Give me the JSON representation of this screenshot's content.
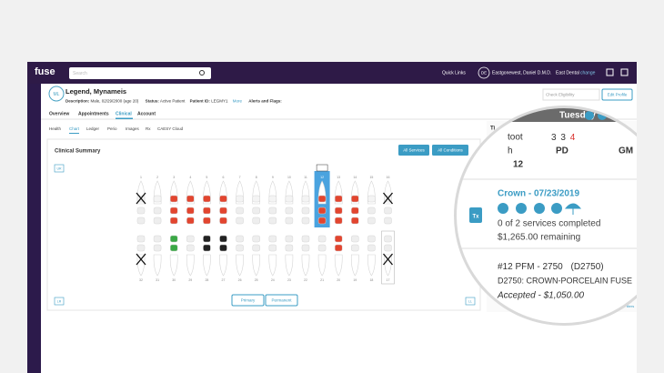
{
  "nav": {
    "logo": "fuse",
    "search_placeholder": "Search",
    "quick_links": "Quick Links",
    "user_initials": "DE",
    "user_name": "Eastgonewest, Daniel D.M.D.",
    "office": "East Dental",
    "office_action": "change"
  },
  "patient": {
    "initials": "ML",
    "name": "Legend, Mynameis",
    "description_label": "Description:",
    "description": "Male, 02/29/2000 (age 20)",
    "status_label": "Status:",
    "status": "Active Patient",
    "id_label": "Patient ID:",
    "id": "LEGMY1",
    "more": "More",
    "alerts": "Alerts and Flags:",
    "eligibility": "Check Eligibility",
    "edit": "Edit Profile"
  },
  "tabs": [
    "Overview",
    "Appointments",
    "Clinical",
    "Account"
  ],
  "subtabs": [
    "Health",
    "Chart",
    "Ledger",
    "Perio",
    "Images",
    "Rx",
    "CAESY Cloud"
  ],
  "chart": {
    "title": "Clinical Summary",
    "buttons": [
      "All Services",
      "All Conditions"
    ],
    "quadrant_ur": "UR",
    "quadrant_lr": "LR",
    "quadrant_ll": "LL",
    "dentition": [
      "Primary",
      "Permanent"
    ],
    "upper_teeth": [
      1,
      2,
      3,
      4,
      5,
      6,
      7,
      8,
      9,
      10,
      11,
      12,
      13,
      14,
      15,
      16
    ],
    "lower_teeth": [
      32,
      31,
      30,
      29,
      28,
      27,
      26,
      25,
      24,
      23,
      22,
      21,
      20,
      19,
      18,
      17
    ]
  },
  "side_panel": {
    "header_fragment": "Ti",
    "completed": "Completed",
    "hide_filters": "Hide Filters"
  },
  "magnifier": {
    "day": "Tuesday",
    "tooth_label_1": "toot",
    "tooth_label_2": "h",
    "pd_values": [
      3,
      3,
      4
    ],
    "pd_label": "PD",
    "gm_label": "GM",
    "tooth": 12,
    "treatment_title": "Crown - 07/23/2019",
    "tx_icon": "Tx",
    "progress": "0 of 2 services completed",
    "remaining": "$1,265.00 remaining",
    "procedure": "#12 PFM - 2750",
    "procedure_code": "(D2750)",
    "procedure_desc": "D2750: CROWN-PORCELAIN FUSE",
    "procedure_status": "Accepted - $1,050.00"
  }
}
